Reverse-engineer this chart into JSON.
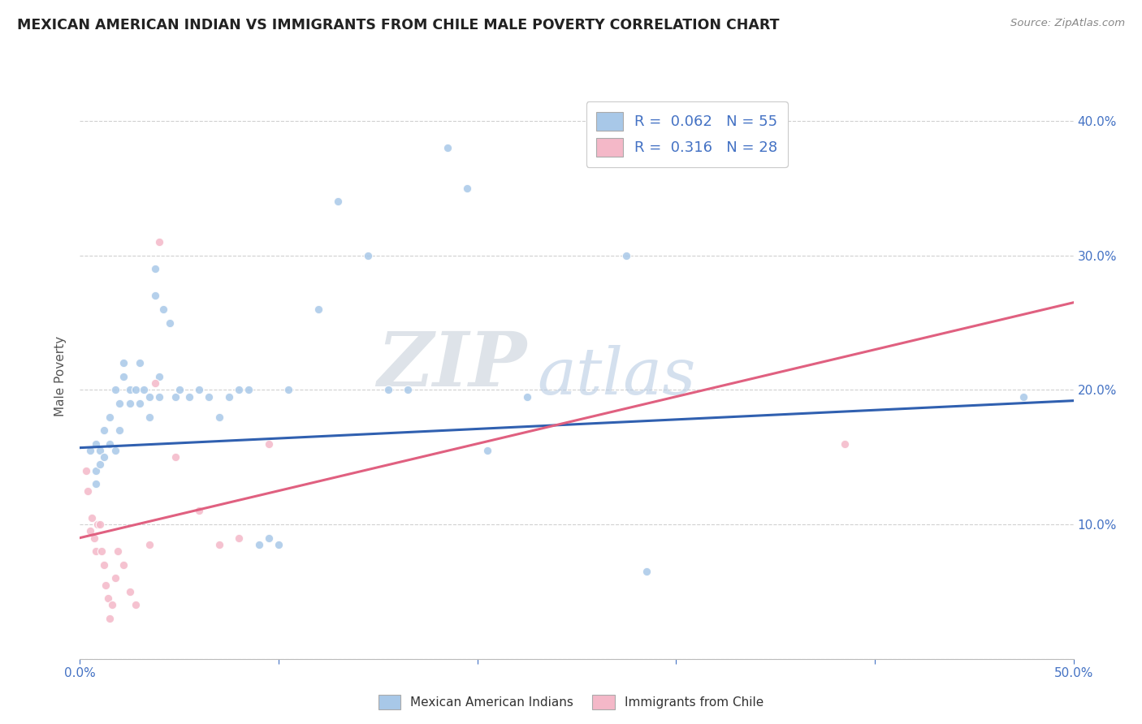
{
  "title": "MEXICAN AMERICAN INDIAN VS IMMIGRANTS FROM CHILE MALE POVERTY CORRELATION CHART",
  "source": "Source: ZipAtlas.com",
  "ylabel": "Male Poverty",
  "xlim": [
    0.0,
    0.5
  ],
  "ylim": [
    0.0,
    0.42
  ],
  "watermark_zip": "ZIP",
  "watermark_atlas": "atlas",
  "r_blue": 0.062,
  "n_blue": 55,
  "r_pink": 0.316,
  "n_pink": 28,
  "blue_scatter_color": "#a8c8e8",
  "pink_scatter_color": "#f4b8c8",
  "line_blue_color": "#3060b0",
  "line_pink_color": "#e06080",
  "background_color": "#ffffff",
  "grid_color": "#d0d0d0",
  "title_color": "#222222",
  "right_tick_color": "#4472c4",
  "legend_label_color": "#4472c4",
  "legend_rn_color": "#4472c4",
  "blue_scatter": [
    [
      0.005,
      0.155
    ],
    [
      0.008,
      0.14
    ],
    [
      0.008,
      0.16
    ],
    [
      0.008,
      0.13
    ],
    [
      0.01,
      0.155
    ],
    [
      0.01,
      0.145
    ],
    [
      0.012,
      0.17
    ],
    [
      0.012,
      0.15
    ],
    [
      0.015,
      0.16
    ],
    [
      0.015,
      0.18
    ],
    [
      0.018,
      0.2
    ],
    [
      0.018,
      0.155
    ],
    [
      0.02,
      0.19
    ],
    [
      0.02,
      0.17
    ],
    [
      0.022,
      0.21
    ],
    [
      0.022,
      0.22
    ],
    [
      0.025,
      0.2
    ],
    [
      0.025,
      0.19
    ],
    [
      0.028,
      0.2
    ],
    [
      0.03,
      0.22
    ],
    [
      0.03,
      0.19
    ],
    [
      0.032,
      0.2
    ],
    [
      0.035,
      0.195
    ],
    [
      0.035,
      0.18
    ],
    [
      0.038,
      0.29
    ],
    [
      0.038,
      0.27
    ],
    [
      0.04,
      0.195
    ],
    [
      0.04,
      0.21
    ],
    [
      0.042,
      0.26
    ],
    [
      0.045,
      0.25
    ],
    [
      0.048,
      0.195
    ],
    [
      0.05,
      0.2
    ],
    [
      0.055,
      0.195
    ],
    [
      0.06,
      0.2
    ],
    [
      0.065,
      0.195
    ],
    [
      0.07,
      0.18
    ],
    [
      0.075,
      0.195
    ],
    [
      0.08,
      0.2
    ],
    [
      0.085,
      0.2
    ],
    [
      0.09,
      0.085
    ],
    [
      0.095,
      0.09
    ],
    [
      0.1,
      0.085
    ],
    [
      0.105,
      0.2
    ],
    [
      0.12,
      0.26
    ],
    [
      0.13,
      0.34
    ],
    [
      0.145,
      0.3
    ],
    [
      0.155,
      0.2
    ],
    [
      0.165,
      0.2
    ],
    [
      0.185,
      0.38
    ],
    [
      0.195,
      0.35
    ],
    [
      0.205,
      0.155
    ],
    [
      0.225,
      0.195
    ],
    [
      0.275,
      0.3
    ],
    [
      0.285,
      0.065
    ],
    [
      0.475,
      0.195
    ]
  ],
  "pink_scatter": [
    [
      0.003,
      0.14
    ],
    [
      0.004,
      0.125
    ],
    [
      0.005,
      0.095
    ],
    [
      0.006,
      0.105
    ],
    [
      0.007,
      0.09
    ],
    [
      0.008,
      0.08
    ],
    [
      0.009,
      0.1
    ],
    [
      0.01,
      0.1
    ],
    [
      0.011,
      0.08
    ],
    [
      0.012,
      0.07
    ],
    [
      0.013,
      0.055
    ],
    [
      0.014,
      0.045
    ],
    [
      0.015,
      0.03
    ],
    [
      0.016,
      0.04
    ],
    [
      0.018,
      0.06
    ],
    [
      0.019,
      0.08
    ],
    [
      0.022,
      0.07
    ],
    [
      0.025,
      0.05
    ],
    [
      0.028,
      0.04
    ],
    [
      0.035,
      0.085
    ],
    [
      0.038,
      0.205
    ],
    [
      0.04,
      0.31
    ],
    [
      0.048,
      0.15
    ],
    [
      0.06,
      0.11
    ],
    [
      0.07,
      0.085
    ],
    [
      0.08,
      0.09
    ],
    [
      0.095,
      0.16
    ],
    [
      0.385,
      0.16
    ]
  ],
  "blue_line_x": [
    0.0,
    0.5
  ],
  "blue_line_y": [
    0.157,
    0.192
  ],
  "pink_line_x": [
    0.0,
    0.5
  ],
  "pink_line_y": [
    0.09,
    0.265
  ]
}
